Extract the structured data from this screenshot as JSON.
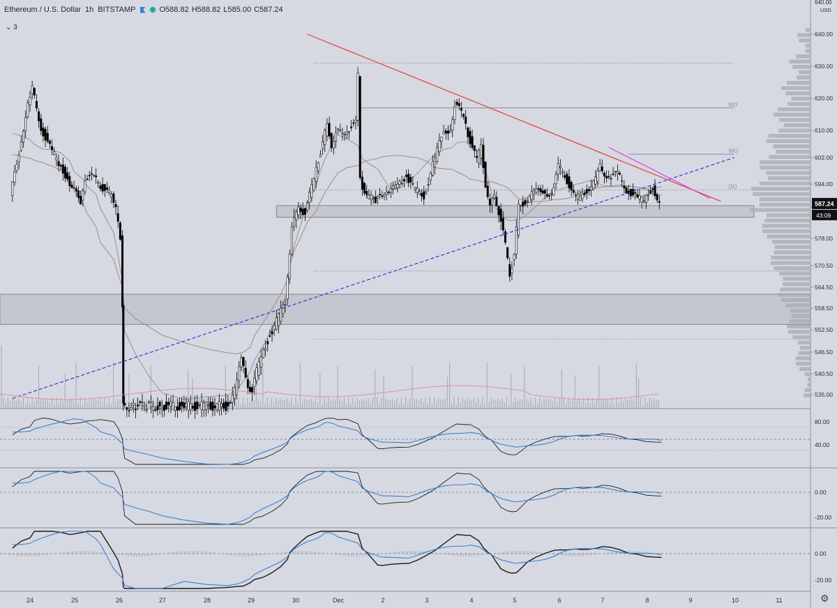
{
  "legend": {
    "symbol": "Ethereum / U.S. Dollar",
    "interval": "1h",
    "exchange": "BITSTAMP",
    "open": "O588.82",
    "high": "H588.82",
    "low": "L585.00",
    "close": "C587.24",
    "indicator_count": "3"
  },
  "chart_data": {
    "type": "candlestick",
    "symbol": "ETH/USD",
    "interval": "1h",
    "x_tick_labels": [
      "24",
      "25",
      "26",
      "27",
      "28",
      "29",
      "30",
      "Dec",
      "2",
      "3",
      "4",
      "5",
      "6",
      "7",
      "8",
      "9",
      "10",
      "11"
    ],
    "price_axis": {
      "unit": "USD",
      "ticks": [
        "640.00",
        "630.00",
        "620.00",
        "610.00",
        "602.00",
        "594.00",
        "586.00",
        "578.00",
        "570.50",
        "564.50",
        "558.50",
        "552.50",
        "546.50",
        "540.50",
        "535.00"
      ],
      "top_partial_label": "640.00",
      "range": [
        532,
        648
      ]
    },
    "last_price": "587.24",
    "countdown": "43:09",
    "level_labels": [
      "MO",
      "WO",
      "DO"
    ],
    "approx_price_path": [
      [
        23.6,
        590
      ],
      [
        23.8,
        604
      ],
      [
        24.0,
        618
      ],
      [
        24.1,
        623
      ],
      [
        24.3,
        611
      ],
      [
        24.5,
        605
      ],
      [
        24.7,
        600
      ],
      [
        24.9,
        596
      ],
      [
        25.0,
        593
      ],
      [
        25.2,
        588
      ],
      [
        25.3,
        596
      ],
      [
        25.5,
        596
      ],
      [
        25.6,
        594
      ],
      [
        25.9,
        590
      ],
      [
        26.0,
        585
      ],
      [
        26.1,
        578
      ],
      [
        26.12,
        560
      ],
      [
        26.15,
        532
      ],
      [
        26.4,
        532
      ],
      [
        26.7,
        532
      ],
      [
        27.0,
        532
      ],
      [
        27.5,
        532
      ],
      [
        28.0,
        532
      ],
      [
        28.5,
        532
      ],
      [
        28.7,
        536
      ],
      [
        28.85,
        544
      ],
      [
        29.0,
        538
      ],
      [
        29.1,
        536
      ],
      [
        29.3,
        546
      ],
      [
        29.5,
        551
      ],
      [
        29.7,
        556
      ],
      [
        29.85,
        560
      ],
      [
        29.9,
        568
      ],
      [
        30.0,
        580
      ],
      [
        30.15,
        587
      ],
      [
        30.3,
        584
      ],
      [
        30.5,
        596
      ],
      [
        30.6,
        601
      ],
      [
        30.7,
        607
      ],
      [
        30.8,
        611
      ],
      [
        30.9,
        606
      ],
      [
        31.0,
        609
      ],
      [
        31.2,
        610
      ],
      [
        31.45,
        612
      ],
      [
        31.5,
        628
      ],
      [
        31.55,
        595
      ],
      [
        31.7,
        590
      ],
      [
        31.9,
        588
      ],
      [
        32.0,
        591
      ],
      [
        32.2,
        590
      ],
      [
        32.4,
        595
      ],
      [
        32.6,
        596
      ],
      [
        32.8,
        592
      ],
      [
        33.0,
        590
      ],
      [
        33.2,
        600
      ],
      [
        33.4,
        608
      ],
      [
        33.6,
        611
      ],
      [
        33.7,
        618
      ],
      [
        33.9,
        615
      ],
      [
        34.0,
        609
      ],
      [
        34.2,
        601
      ],
      [
        34.3,
        605
      ],
      [
        34.4,
        594
      ],
      [
        34.5,
        586
      ],
      [
        34.6,
        590
      ],
      [
        34.7,
        585
      ],
      [
        34.85,
        576
      ],
      [
        34.95,
        568
      ],
      [
        35.05,
        574
      ],
      [
        35.15,
        586
      ],
      [
        35.3,
        588
      ],
      [
        35.5,
        591
      ],
      [
        35.7,
        592
      ],
      [
        35.9,
        590
      ],
      [
        36.05,
        599
      ],
      [
        36.2,
        597
      ],
      [
        36.4,
        590
      ],
      [
        36.55,
        589
      ],
      [
        36.7,
        592
      ],
      [
        36.9,
        595
      ],
      [
        37.0,
        599
      ],
      [
        37.2,
        596
      ],
      [
        37.4,
        597
      ],
      [
        37.6,
        592
      ],
      [
        37.8,
        590
      ],
      [
        38.0,
        588
      ],
      [
        38.2,
        593
      ],
      [
        38.35,
        587.24
      ]
    ],
    "overlays": {
      "red_trendline": [
        [
          30.3,
          640
        ],
        [
          39.7,
          588
        ]
      ],
      "blue_dashed_trendline": [
        [
          23.6,
          534
        ],
        [
          40.0,
          602
        ]
      ],
      "magenta_trendline": [
        [
          37.15,
          605
        ],
        [
          39.45,
          589
        ]
      ],
      "horizontal_levels": [
        631,
        617,
        603,
        592,
        569,
        550
      ],
      "zones": [
        [
          583.4,
          586.5
        ],
        [
          554,
          562.5
        ]
      ]
    }
  },
  "indicators": [
    {
      "name": "rsi",
      "ticks": [
        "80.00",
        "40.00"
      ]
    },
    {
      "name": "oscillator",
      "ticks": [
        "0.00",
        "-20.00"
      ]
    },
    {
      "name": "macd",
      "ticks": [
        "0.00",
        "-20.00"
      ]
    }
  ],
  "colors": {
    "background": "#d6d9e1",
    "candle": "#000000",
    "red_line": "#e23b3b",
    "blue_line": "#2e36d8",
    "magenta_line": "#e040e0",
    "signal_line": "#3f7fd0",
    "pink_line": "#d98aa5"
  }
}
